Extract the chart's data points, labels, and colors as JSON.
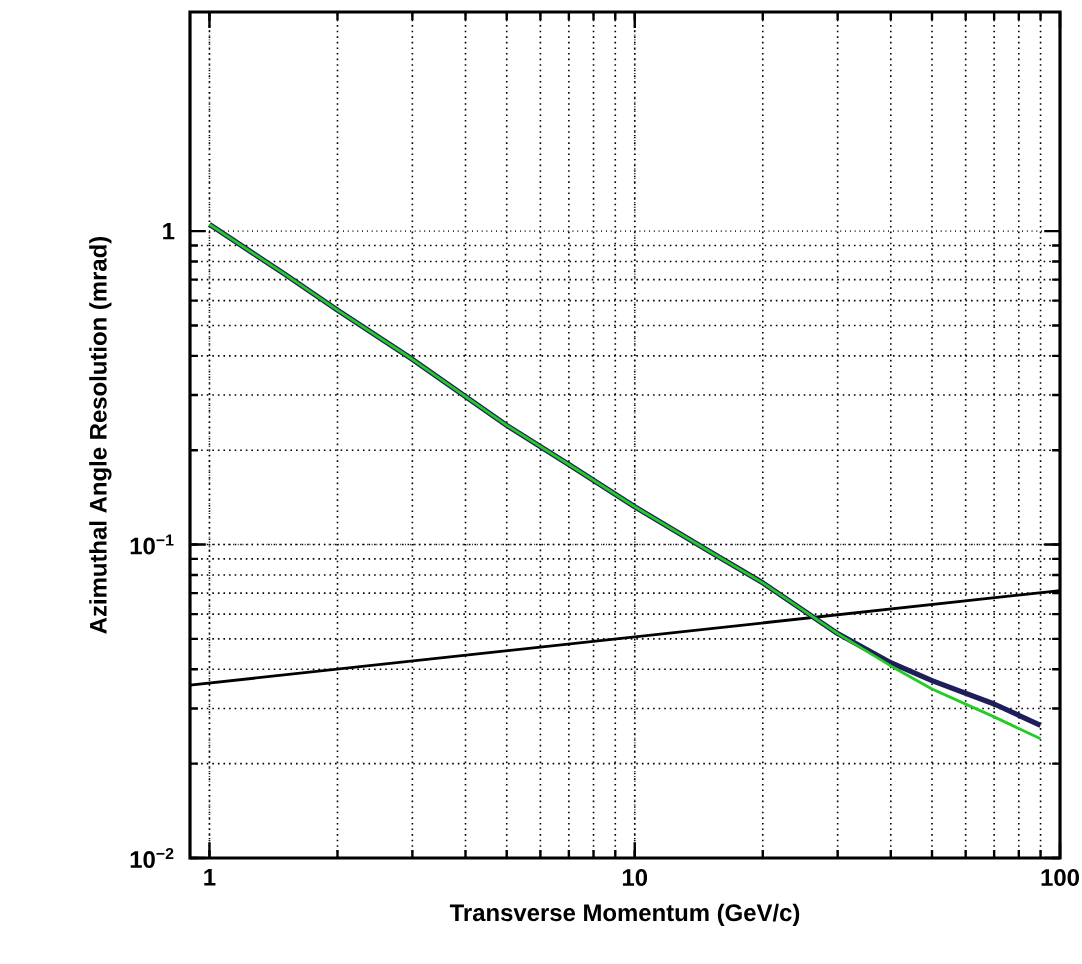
{
  "chart_data": {
    "type": "line",
    "xlabel": "Transverse Momentum (GeV/c)",
    "ylabel": "Azimuthal Angle Resolution (mrad)",
    "log": "xy",
    "grid": true,
    "marker": "none",
    "line_style": "solid",
    "xlim": [
      0.9,
      100
    ],
    "ylim": [
      0.01,
      5
    ],
    "xticks": [
      1,
      10,
      100
    ],
    "yticks": [
      {
        "value": 0.01,
        "label": "10$^{−2}$"
      },
      {
        "value": 0.1,
        "label": "10$^{−1}$"
      },
      1
    ],
    "series": [
      {
        "color": "#000000",
        "x": [
          0.9,
          100
        ],
        "values": [
          0.0356,
          0.0713
        ]
      },
      {
        "color": "#1e1e5a",
        "x": [
          1,
          1.5,
          2,
          3,
          5,
          7,
          10,
          15,
          20,
          30,
          40,
          50,
          70,
          90
        ],
        "values": [
          1.05,
          0.73,
          0.56,
          0.39,
          0.24,
          0.18,
          0.132,
          0.095,
          0.0755,
          0.052,
          0.042,
          0.0368,
          0.031,
          0.0265
        ]
      },
      {
        "color": "#22cc22",
        "x": [
          1,
          1.5,
          2,
          3,
          5,
          7,
          10,
          15,
          20,
          30,
          40,
          50,
          70,
          90
        ],
        "values": [
          1.05,
          0.73,
          0.56,
          0.39,
          0.24,
          0.18,
          0.132,
          0.095,
          0.0755,
          0.052,
          0.041,
          0.0346,
          0.0282,
          0.024
        ]
      }
    ]
  }
}
